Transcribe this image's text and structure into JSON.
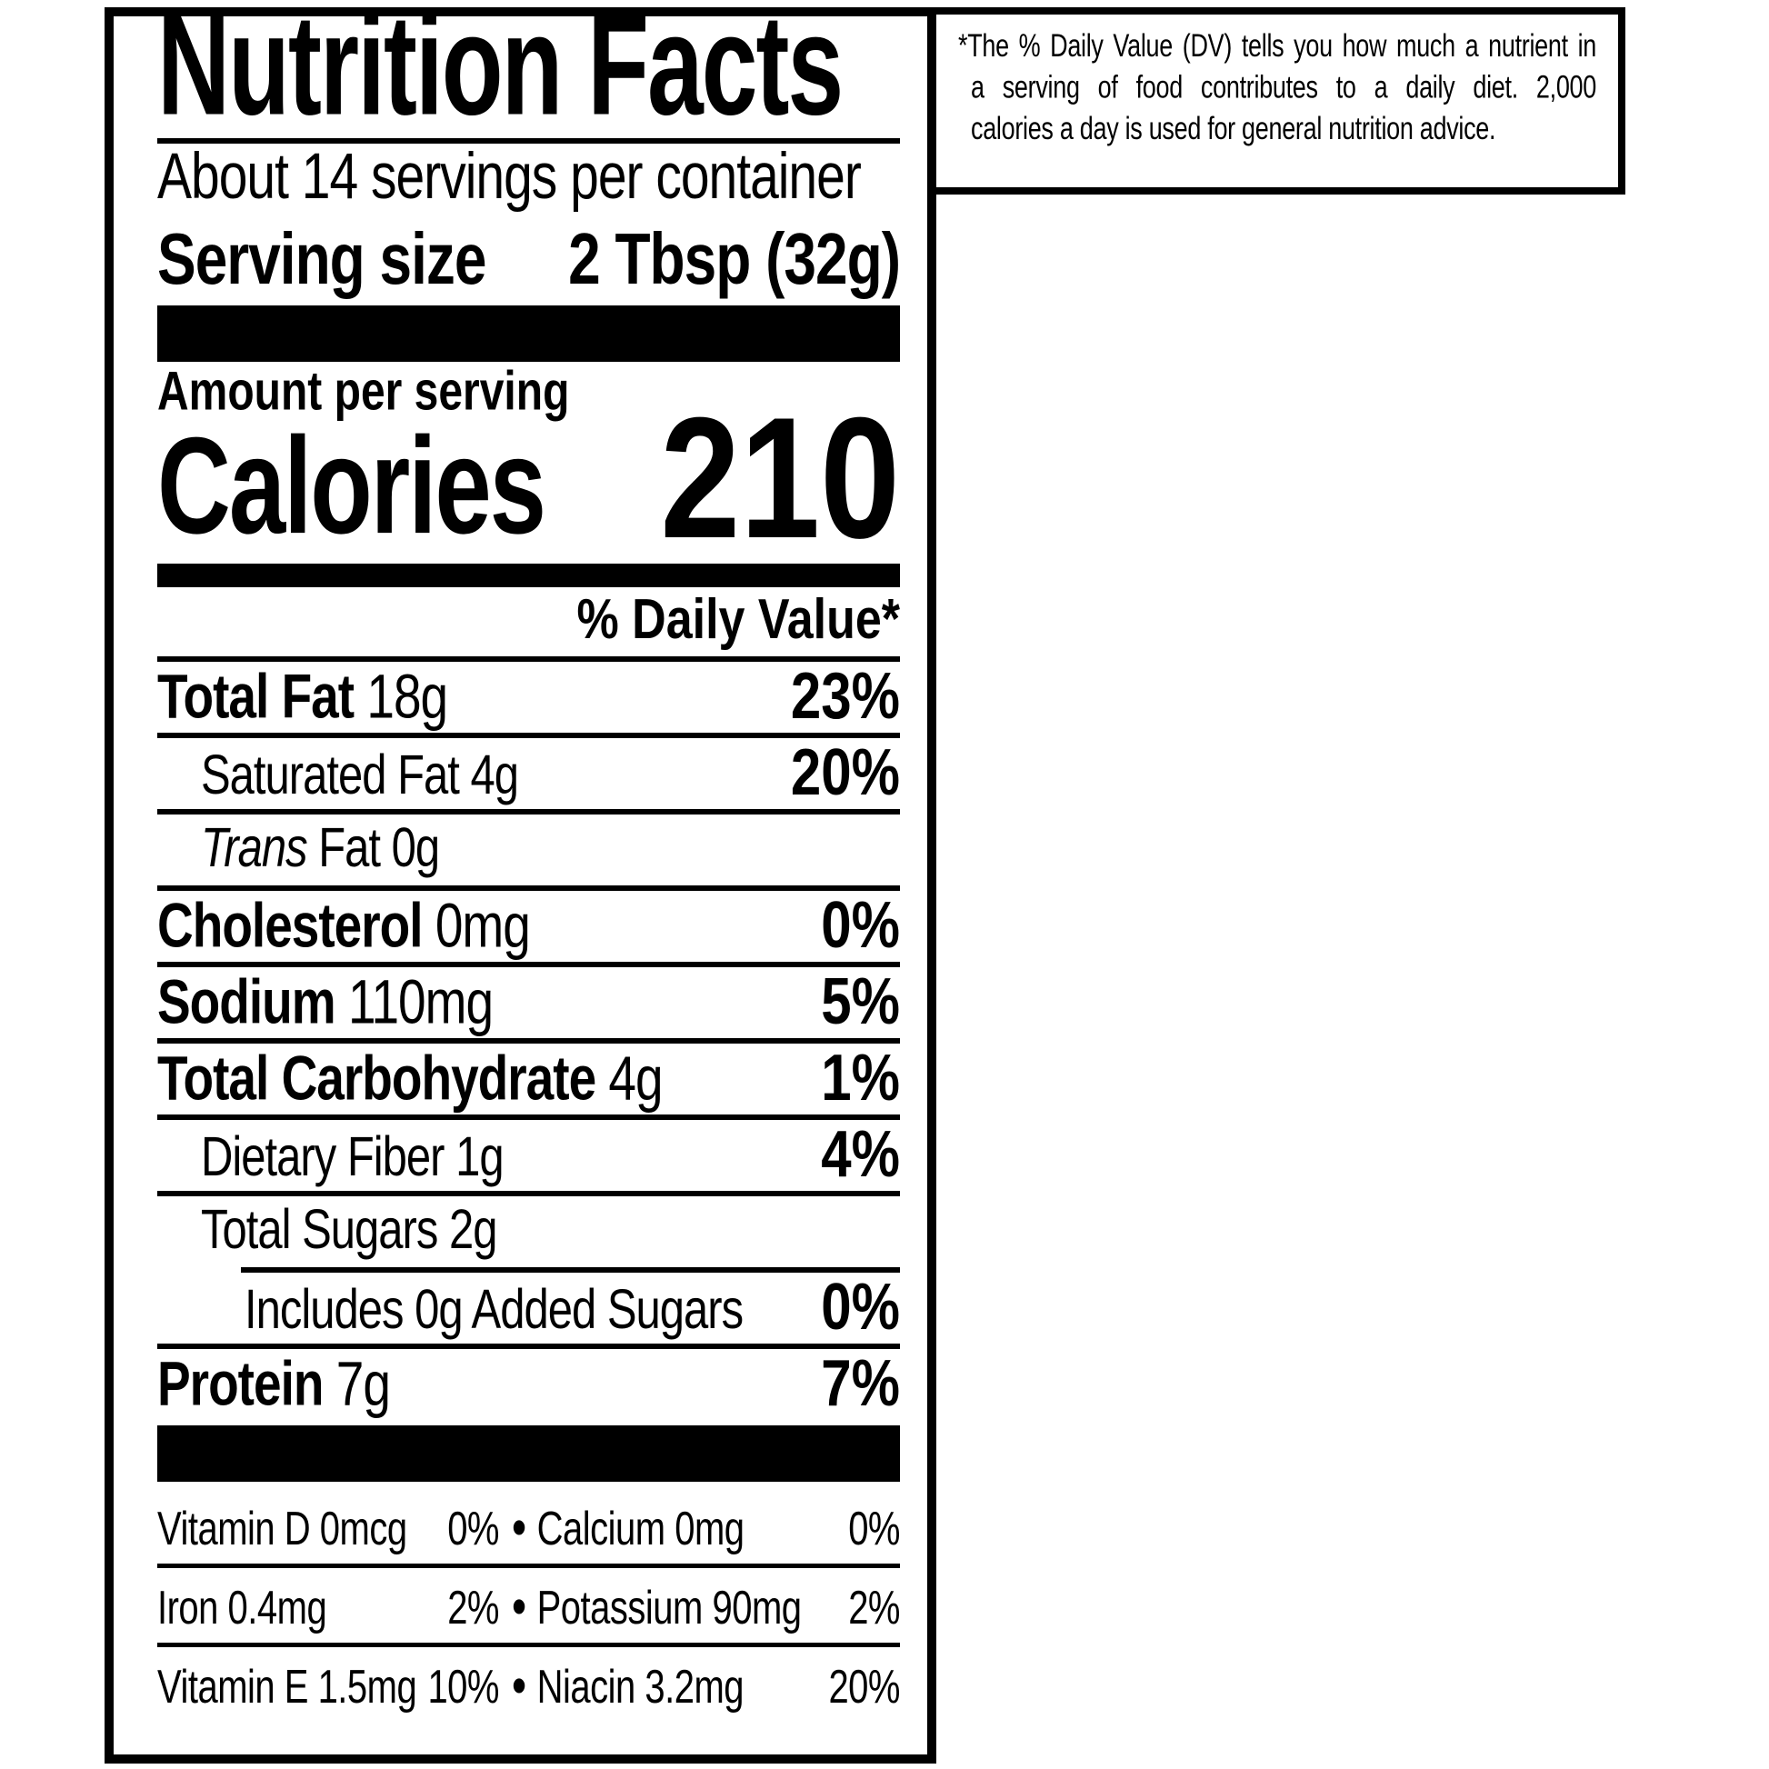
{
  "label": {
    "title": "Nutrition Facts",
    "servings_per_container": "About 14 servings per container",
    "serving_size_label": "Serving size",
    "serving_size_value": "2 Tbsp (32g)",
    "amount_per_serving": "Amount per serving",
    "calories_label": "Calories",
    "calories_value": "210",
    "daily_value_header": "% Daily Value*",
    "rows": [
      {
        "name": "Total Fat",
        "amount": "18g",
        "dv": "23%",
        "bold": true,
        "indent": 0
      },
      {
        "name": "Saturated Fat",
        "amount": "4g",
        "dv": "20%",
        "bold": false,
        "indent": 1
      },
      {
        "name_italic": "Trans",
        "name": "Fat",
        "amount": "0g",
        "dv": "",
        "bold": false,
        "indent": 1
      },
      {
        "name": "Cholesterol",
        "amount": "0mg",
        "dv": "0%",
        "bold": true,
        "indent": 0
      },
      {
        "name": "Sodium",
        "amount": "110mg",
        "dv": "5%",
        "bold": true,
        "indent": 0
      },
      {
        "name": "Total Carbohydrate",
        "amount": "4g",
        "dv": "1%",
        "bold": true,
        "indent": 0
      },
      {
        "name": "Dietary Fiber",
        "amount": "1g",
        "dv": "4%",
        "bold": false,
        "indent": 1
      },
      {
        "name": "Total Sugars",
        "amount": "2g",
        "dv": "",
        "bold": false,
        "indent": 1
      },
      {
        "name": "Includes 0g Added Sugars",
        "amount": "",
        "dv": "0%",
        "bold": false,
        "indent": 2,
        "rule_indent": true
      },
      {
        "name": "Protein",
        "amount": "7g",
        "dv": "7%",
        "bold": true,
        "indent": 0
      }
    ],
    "micronutrients": [
      {
        "left_name": "Vitamin D 0mcg",
        "left_dv": "0%",
        "right_name": "Calcium 0mg",
        "right_dv": "0%"
      },
      {
        "left_name": "Iron 0.4mg",
        "left_dv": "2%",
        "right_name": "Potassium 90mg",
        "right_dv": "2%"
      },
      {
        "left_name": "Vitamin E 1.5mg",
        "left_dv": "10%",
        "right_name": "Niacin 3.2mg",
        "right_dv": "20%"
      }
    ],
    "bullet": "•",
    "footnote_lines": [
      "*The % Daily Value (DV) tells you how much a nutrient in",
      "a serving of food contributes to a daily diet. 2,000",
      "calories a day is used for general nutrition advice."
    ],
    "colors": {
      "ink": "#000000",
      "paper": "#ffffff"
    }
  }
}
